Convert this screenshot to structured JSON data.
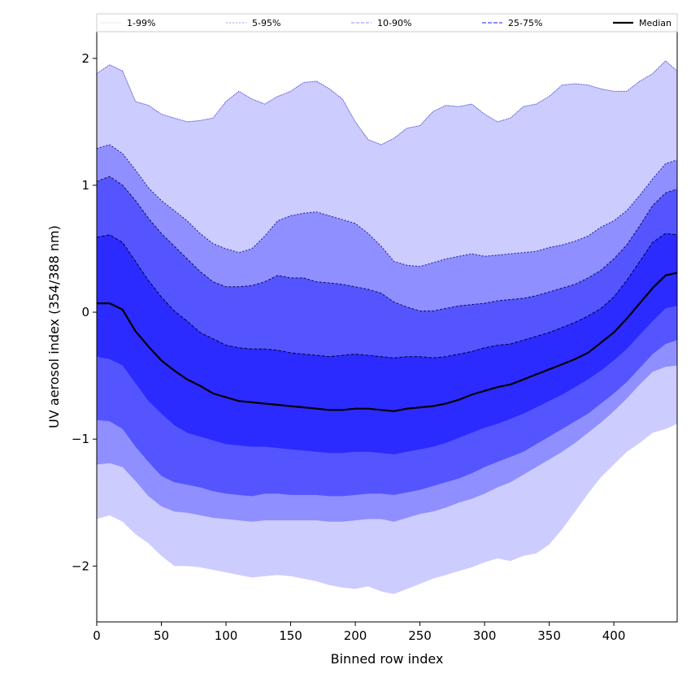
{
  "chart_data": {
    "type": "area",
    "title": "",
    "xlabel": "Binned row index",
    "ylabel": "UV aerosol index (354/388 nm)",
    "xlim": [
      0,
      449
    ],
    "ylim": [
      -2.44,
      2.21
    ],
    "xticks": [
      0,
      50,
      100,
      150,
      200,
      250,
      300,
      350,
      400
    ],
    "xtick_labels": [
      "0",
      "50",
      "100",
      "150",
      "200",
      "250",
      "300",
      "350",
      "400"
    ],
    "yticks": [
      -2,
      -1,
      0,
      1,
      2
    ],
    "ytick_labels": [
      "−2",
      "−1",
      "0",
      "1",
      "2"
    ],
    "grid": false,
    "legend_position": "top",
    "legend": [
      {
        "label": "1-99%",
        "color": "#ccccff",
        "style": "dotted"
      },
      {
        "label": "5-95%",
        "color": "#9999ee",
        "style": "dashed-fine"
      },
      {
        "label": "10-90%",
        "color": "#8888ff",
        "style": "dashed"
      },
      {
        "label": "25-75%",
        "color": "#6666ff",
        "style": "dashed"
      },
      {
        "label": "Median",
        "color": "#000000",
        "style": "solid"
      }
    ],
    "x": [
      0,
      10,
      20,
      30,
      40,
      50,
      60,
      70,
      80,
      90,
      100,
      110,
      120,
      130,
      140,
      150,
      160,
      170,
      180,
      190,
      200,
      210,
      220,
      230,
      240,
      250,
      260,
      270,
      280,
      290,
      300,
      310,
      320,
      330,
      340,
      350,
      360,
      370,
      380,
      390,
      400,
      410,
      420,
      430,
      440,
      449
    ],
    "series": [
      {
        "name": "p99",
        "values": [
          1.88,
          1.95,
          1.9,
          1.66,
          1.63,
          1.56,
          1.53,
          1.5,
          1.51,
          1.53,
          1.66,
          1.74,
          1.68,
          1.64,
          1.7,
          1.74,
          1.81,
          1.82,
          1.76,
          1.68,
          1.5,
          1.36,
          1.32,
          1.37,
          1.45,
          1.47,
          1.58,
          1.63,
          1.62,
          1.64,
          1.56,
          1.5,
          1.53,
          1.62,
          1.64,
          1.7,
          1.79,
          1.8,
          1.79,
          1.76,
          1.74,
          1.74,
          1.82,
          1.88,
          1.98,
          1.9
        ]
      },
      {
        "name": "p95",
        "values": [
          1.29,
          1.32,
          1.25,
          1.12,
          0.98,
          0.88,
          0.8,
          0.72,
          0.62,
          0.54,
          0.5,
          0.47,
          0.5,
          0.6,
          0.72,
          0.76,
          0.78,
          0.79,
          0.76,
          0.73,
          0.7,
          0.62,
          0.52,
          0.4,
          0.37,
          0.36,
          0.39,
          0.42,
          0.44,
          0.46,
          0.44,
          0.45,
          0.46,
          0.47,
          0.48,
          0.51,
          0.53,
          0.56,
          0.6,
          0.67,
          0.72,
          0.8,
          0.92,
          1.05,
          1.17,
          1.2
        ]
      },
      {
        "name": "p90",
        "values": [
          1.03,
          1.07,
          1.0,
          0.88,
          0.74,
          0.62,
          0.52,
          0.42,
          0.32,
          0.24,
          0.2,
          0.2,
          0.21,
          0.24,
          0.29,
          0.27,
          0.27,
          0.24,
          0.23,
          0.22,
          0.2,
          0.18,
          0.15,
          0.08,
          0.04,
          0.01,
          0.01,
          0.03,
          0.05,
          0.06,
          0.07,
          0.09,
          0.1,
          0.11,
          0.13,
          0.16,
          0.19,
          0.22,
          0.27,
          0.33,
          0.42,
          0.53,
          0.68,
          0.84,
          0.94,
          0.97
        ]
      },
      {
        "name": "p75",
        "values": [
          0.59,
          0.61,
          0.55,
          0.4,
          0.25,
          0.12,
          0.01,
          -0.07,
          -0.16,
          -0.21,
          -0.26,
          -0.28,
          -0.29,
          -0.29,
          -0.3,
          -0.32,
          -0.33,
          -0.34,
          -0.35,
          -0.34,
          -0.33,
          -0.34,
          -0.35,
          -0.36,
          -0.35,
          -0.35,
          -0.36,
          -0.35,
          -0.33,
          -0.31,
          -0.28,
          -0.26,
          -0.25,
          -0.22,
          -0.19,
          -0.16,
          -0.12,
          -0.08,
          -0.03,
          0.03,
          0.12,
          0.25,
          0.4,
          0.55,
          0.62,
          0.61
        ]
      },
      {
        "name": "median",
        "values": [
          0.07,
          0.07,
          0.02,
          -0.15,
          -0.27,
          -0.38,
          -0.46,
          -0.53,
          -0.58,
          -0.64,
          -0.67,
          -0.7,
          -0.71,
          -0.72,
          -0.73,
          -0.74,
          -0.75,
          -0.76,
          -0.77,
          -0.77,
          -0.76,
          -0.76,
          -0.77,
          -0.78,
          -0.76,
          -0.75,
          -0.74,
          -0.72,
          -0.69,
          -0.65,
          -0.62,
          -0.59,
          -0.57,
          -0.53,
          -0.49,
          -0.45,
          -0.41,
          -0.37,
          -0.32,
          -0.24,
          -0.16,
          -0.05,
          0.07,
          0.19,
          0.29,
          0.31
        ]
      },
      {
        "name": "p25",
        "values": [
          -0.35,
          -0.37,
          -0.42,
          -0.56,
          -0.7,
          -0.8,
          -0.89,
          -0.95,
          -0.98,
          -1.01,
          -1.04,
          -1.05,
          -1.06,
          -1.06,
          -1.07,
          -1.08,
          -1.09,
          -1.1,
          -1.11,
          -1.11,
          -1.1,
          -1.1,
          -1.11,
          -1.12,
          -1.1,
          -1.08,
          -1.06,
          -1.03,
          -0.99,
          -0.95,
          -0.91,
          -0.88,
          -0.84,
          -0.8,
          -0.75,
          -0.7,
          -0.65,
          -0.59,
          -0.53,
          -0.46,
          -0.38,
          -0.29,
          -0.18,
          -0.07,
          0.03,
          0.05
        ]
      },
      {
        "name": "p10",
        "values": [
          -0.85,
          -0.86,
          -0.92,
          -1.06,
          -1.18,
          -1.29,
          -1.34,
          -1.36,
          -1.38,
          -1.41,
          -1.43,
          -1.44,
          -1.45,
          -1.43,
          -1.43,
          -1.44,
          -1.44,
          -1.44,
          -1.45,
          -1.45,
          -1.44,
          -1.43,
          -1.43,
          -1.44,
          -1.42,
          -1.4,
          -1.37,
          -1.34,
          -1.31,
          -1.27,
          -1.22,
          -1.18,
          -1.14,
          -1.1,
          -1.04,
          -0.98,
          -0.92,
          -0.86,
          -0.8,
          -0.72,
          -0.64,
          -0.55,
          -0.44,
          -0.33,
          -0.25,
          -0.22
        ]
      },
      {
        "name": "p5",
        "values": [
          -1.2,
          -1.19,
          -1.22,
          -1.33,
          -1.45,
          -1.53,
          -1.57,
          -1.58,
          -1.6,
          -1.62,
          -1.63,
          -1.64,
          -1.65,
          -1.64,
          -1.64,
          -1.64,
          -1.64,
          -1.64,
          -1.65,
          -1.65,
          -1.64,
          -1.63,
          -1.63,
          -1.65,
          -1.62,
          -1.59,
          -1.57,
          -1.54,
          -1.5,
          -1.47,
          -1.43,
          -1.38,
          -1.34,
          -1.28,
          -1.22,
          -1.16,
          -1.1,
          -1.03,
          -0.95,
          -0.87,
          -0.78,
          -0.68,
          -0.57,
          -0.47,
          -0.43,
          -0.42
        ]
      },
      {
        "name": "p1",
        "values": [
          -1.63,
          -1.6,
          -1.65,
          -1.75,
          -1.82,
          -1.92,
          -2.0,
          -2.0,
          -2.01,
          -2.03,
          -2.05,
          -2.07,
          -2.09,
          -2.08,
          -2.07,
          -2.08,
          -2.1,
          -2.12,
          -2.15,
          -2.17,
          -2.18,
          -2.16,
          -2.2,
          -2.22,
          -2.18,
          -2.14,
          -2.1,
          -2.07,
          -2.04,
          -2.01,
          -1.97,
          -1.94,
          -1.96,
          -1.92,
          -1.9,
          -1.83,
          -1.71,
          -1.57,
          -1.43,
          -1.3,
          -1.2,
          -1.1,
          -1.03,
          -0.95,
          -0.92,
          -0.88
        ]
      }
    ],
    "bands": [
      {
        "label": "1-99%",
        "lower": "p1",
        "upper": "p99",
        "fill": "#ccccff",
        "edge": "#3333cc"
      },
      {
        "label": "5-95%",
        "lower": "p5",
        "upper": "p95",
        "fill": "#8f8fff",
        "edge": "#1a1a99"
      },
      {
        "label": "10-90%",
        "lower": "p10",
        "upper": "p90",
        "fill": "#5555ff",
        "edge": "#0d0d66"
      },
      {
        "label": "25-75%",
        "lower": "p25",
        "upper": "p75",
        "fill": "#2b2bff",
        "edge": "#000044"
      }
    ]
  }
}
